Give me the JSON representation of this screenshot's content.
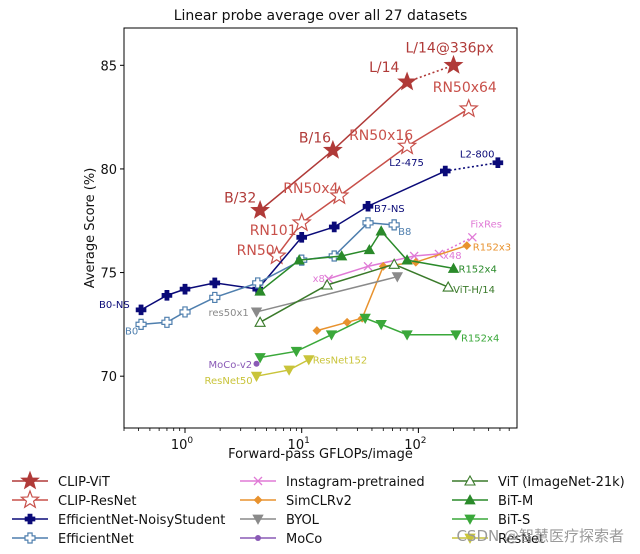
{
  "chart_data": {
    "type": "line",
    "title": "Linear probe average over all 27 datasets",
    "xlabel": "Forward-pass GFLOPs/image",
    "ylabel": "Average Score (%)",
    "xscale": "log",
    "xlim": [
      0.3,
      700
    ],
    "ylim": [
      67.5,
      86.8
    ],
    "xticks": [
      {
        "value": 1,
        "label": "10",
        "exp": "0"
      },
      {
        "value": 10,
        "label": "10",
        "exp": "1"
      },
      {
        "value": 100,
        "label": "10",
        "exp": "2"
      }
    ],
    "yticks": [
      70,
      75,
      80,
      85
    ],
    "legend_position": "bottom",
    "series": [
      {
        "name": "CLIP-ViT",
        "color": "#b03a38",
        "marker": "star-filled",
        "marker_size": 9,
        "line": "solid",
        "points": [
          [
            4.4,
            78.0
          ],
          [
            18.5,
            80.9
          ],
          [
            80,
            84.2
          ]
        ],
        "labels": [
          "B/32",
          "B/16",
          "L/14"
        ],
        "extension": {
          "points": [
            [
              80,
              84.2
            ],
            [
              200,
              85.0
            ]
          ],
          "labels": [
            "",
            "L/14@336px"
          ],
          "style": "dotted"
        }
      },
      {
        "name": "CLIP-ResNet",
        "color": "#c8504a",
        "marker": "star-open",
        "marker_size": 9,
        "line": "solid",
        "points": [
          [
            6.1,
            75.8
          ],
          [
            10,
            77.4
          ],
          [
            21,
            78.7
          ],
          [
            80,
            81.1
          ],
          [
            270,
            82.9
          ]
        ],
        "labels": [
          "RN50",
          "RN101",
          "RN50x4",
          "RN50x16",
          "RN50x64"
        ]
      },
      {
        "name": "EfficientNet-NoisyStudent",
        "color": "#0a0a78",
        "marker": "plus-filled",
        "marker_size": 5,
        "line": "solid",
        "points": [
          [
            0.42,
            73.2
          ],
          [
            0.7,
            73.9
          ],
          [
            1.0,
            74.2
          ],
          [
            1.8,
            74.5
          ],
          [
            4.2,
            74.2
          ],
          [
            10,
            76.7
          ],
          [
            19,
            77.2
          ],
          [
            37,
            78.2
          ],
          [
            170,
            79.9
          ]
        ],
        "labels": [
          "B0-NS",
          "",
          "",
          "",
          "",
          "",
          "",
          "B7-NS",
          "L2-475"
        ],
        "extension": {
          "points": [
            [
              170,
              79.9
            ],
            [
              480,
              80.3
            ]
          ],
          "labels": [
            "",
            "L2-800"
          ],
          "style": "dotted"
        }
      },
      {
        "name": "EfficientNet",
        "color": "#4f7fae",
        "marker": "plus-open",
        "marker_size": 5,
        "line": "solid",
        "points": [
          [
            0.42,
            72.5
          ],
          [
            0.7,
            72.6
          ],
          [
            1.0,
            73.1
          ],
          [
            1.8,
            73.8
          ],
          [
            4.2,
            74.5
          ],
          [
            10,
            75.6
          ],
          [
            19,
            75.8
          ],
          [
            37,
            77.4
          ],
          [
            62,
            77.3
          ]
        ],
        "labels": [
          "B0",
          "",
          "",
          "",
          "",
          "",
          "",
          "",
          "B8"
        ]
      },
      {
        "name": "Instagram-pretrained",
        "color": "#e07ad6",
        "marker": "x",
        "marker_size": 4,
        "line": "solid",
        "points": [
          [
            17,
            74.7
          ],
          [
            37,
            75.3
          ],
          [
            92,
            75.8
          ],
          [
            150,
            75.9
          ]
        ],
        "labels": [
          "x8",
          "",
          "",
          "x48"
        ],
        "extension": {
          "points": [
            [
              150,
              75.9
            ],
            [
              290,
              76.7
            ]
          ],
          "labels": [
            "",
            "FixRes"
          ],
          "style": "dotted"
        }
      },
      {
        "name": "SimCLRv2",
        "color": "#e8922e",
        "marker": "diamond",
        "marker_size": 4,
        "line": "solid",
        "points": [
          [
            13.5,
            72.2
          ],
          [
            24.5,
            72.6
          ],
          [
            33,
            72.8
          ],
          [
            50,
            75.3
          ],
          [
            95,
            75.5
          ],
          [
            260,
            76.3
          ]
        ],
        "labels": [
          "",
          "",
          "",
          "",
          "",
          "R152x3"
        ]
      },
      {
        "name": "BYOL",
        "color": "#8a8a8a",
        "marker": "tri-down",
        "marker_size": 5,
        "line": "solid",
        "points": [
          [
            4.1,
            73.1
          ],
          [
            66,
            74.8
          ]
        ],
        "labels": [
          "res50x1",
          ""
        ]
      },
      {
        "name": "MoCo",
        "color": "#8a5ab6",
        "marker": "dot",
        "marker_size": 3,
        "line": "solid",
        "points": [
          [
            4.1,
            70.6
          ]
        ],
        "labels": [
          "MoCo-v2"
        ]
      },
      {
        "name": "ViT (ImageNet-21k)",
        "color": "#3a7a2a",
        "marker": "tri-up-open",
        "marker_size": 5,
        "line": "solid",
        "points": [
          [
            4.4,
            72.6
          ],
          [
            16.5,
            74.4
          ],
          [
            62,
            75.4
          ],
          [
            180,
            74.3
          ]
        ],
        "labels": [
          "",
          "",
          "",
          "ViT-H/14"
        ]
      },
      {
        "name": "BiT-M",
        "color": "#2a8a2a",
        "marker": "tri-up",
        "marker_size": 5,
        "line": "solid",
        "points": [
          [
            4.4,
            74.1
          ],
          [
            9.5,
            75.6
          ],
          [
            22,
            75.8
          ],
          [
            38,
            76.1
          ],
          [
            48,
            77.0
          ],
          [
            80,
            75.6
          ],
          [
            200,
            75.2
          ]
        ],
        "labels": [
          "",
          "",
          "",
          "",
          "",
          "",
          "R152x4"
        ]
      },
      {
        "name": "BiT-S",
        "color": "#3aa83a",
        "marker": "tri-down",
        "marker_size": 5,
        "line": "solid",
        "points": [
          [
            4.4,
            70.9
          ],
          [
            9,
            71.2
          ],
          [
            18,
            72.0
          ],
          [
            35,
            72.8
          ],
          [
            48,
            72.5
          ],
          [
            80,
            72.0
          ],
          [
            210,
            72.0
          ]
        ],
        "labels": [
          "",
          "",
          "",
          "",
          "",
          "",
          "R152x4"
        ]
      },
      {
        "name": "ResNet",
        "color": "#c9c43a",
        "marker": "tri-down",
        "marker_size": 5,
        "line": "solid",
        "points": [
          [
            4.1,
            70.0
          ],
          [
            7.8,
            70.3
          ],
          [
            11.5,
            70.8
          ]
        ],
        "labels": [
          "ResNet50",
          "",
          "ResNet152"
        ]
      }
    ]
  },
  "watermark": "CSDN @智慧医疗探索者"
}
